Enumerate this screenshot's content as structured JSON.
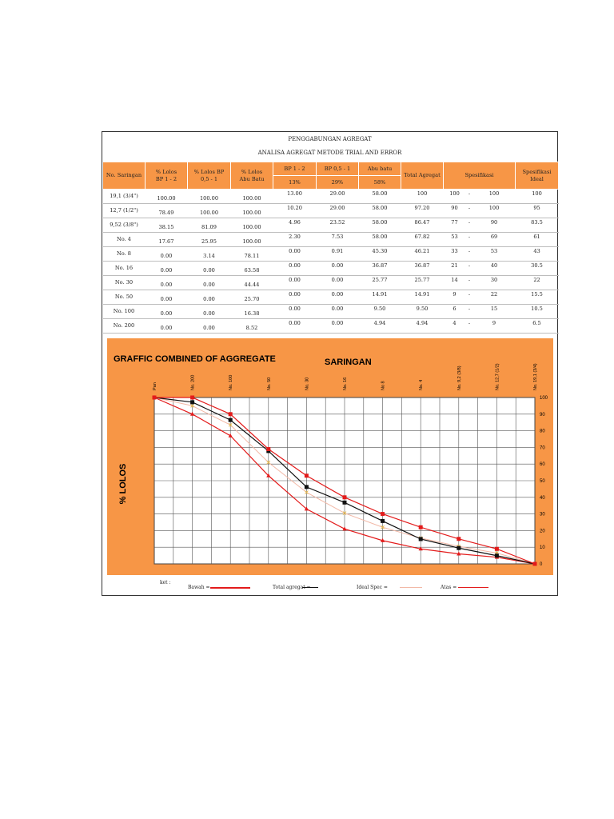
{
  "title": "PENGGABUNGAN AGREGAT",
  "subtitle": "ANALISA AGREGAT METODE TRIAL AND ERROR",
  "header": {
    "col_saringan": "No. Saringan",
    "col_lolos_bp12": [
      "% Lolos",
      "BP  1 - 2"
    ],
    "col_lolos_bp051": [
      "% Lolos     BP",
      "0,5 - 1"
    ],
    "col_lolos_abu": [
      "% Lolos",
      "Abu Batu"
    ],
    "col_bp12": "BP 1 - 2",
    "col_bp051": "BP 0,5 - 1",
    "col_abu": "Abu batu",
    "pct_bp12": "13%",
    "pct_bp051": "29%",
    "pct_abu": "58%",
    "col_total": "Total Agregat",
    "col_spec": "Spesifikasi",
    "col_ideal": [
      "Spesifikasi",
      "Ideal"
    ]
  },
  "rows": [
    [
      "19,1 (3/4\")",
      "100.00",
      "100.00",
      "100.00",
      "13.00",
      "29.00",
      "58.00",
      "100",
      "100",
      "-",
      "100",
      "100"
    ],
    [
      "12,7 (1/2\")",
      "78.49",
      "100.00",
      "100.00",
      "10.20",
      "29.00",
      "58.00",
      "97.20",
      "90",
      "-",
      "100",
      "95"
    ],
    [
      "9,52 (3/8\")",
      "38.15",
      "81.09",
      "100.00",
      "4.96",
      "23.52",
      "58.00",
      "86.47",
      "77",
      "-",
      "90",
      "83.5"
    ],
    [
      "No. 4",
      "17.67",
      "25.95",
      "100.00",
      "2.30",
      "7.53",
      "58.00",
      "67.82",
      "53",
      "-",
      "69",
      "61"
    ],
    [
      "No. 8",
      "0.00",
      "3.14",
      "78.11",
      "0.00",
      "0.91",
      "45.30",
      "46.21",
      "33",
      "-",
      "53",
      "43"
    ],
    [
      "No. 16",
      "0.00",
      "0.00",
      "63.58",
      "0.00",
      "0.00",
      "36.87",
      "36.87",
      "21",
      "-",
      "40",
      "30.5"
    ],
    [
      "No. 30",
      "0.00",
      "0.00",
      "44.44",
      "0.00",
      "0.00",
      "25.77",
      "25.77",
      "14",
      "-",
      "30",
      "22"
    ],
    [
      "No. 50",
      "0.00",
      "0.00",
      "25.70",
      "0.00",
      "0.00",
      "14.91",
      "14.91",
      "9",
      "-",
      "22",
      "15.5"
    ],
    [
      "No. 100",
      "0.00",
      "0.00",
      "16.38",
      "0.00",
      "0.00",
      "9.50",
      "9.50",
      "6",
      "-",
      "15",
      "10.5"
    ],
    [
      "No. 200",
      "0.00",
      "0.00",
      "8.52",
      "0.00",
      "0.00",
      "4.94",
      "4.94",
      "4",
      "-",
      "9",
      "6.5"
    ]
  ],
  "legend": {
    "ket": "ket :",
    "bawah": "Bawah =",
    "total": "Total agregat =",
    "ideal": "Ideal Spec =",
    "atas": "Atas ="
  },
  "chart_data": {
    "type": "line",
    "title": "GRAFFIC COMBINED OF AGGREGATE",
    "xlabel": "SARINGAN",
    "ylabel": "% LOLOS",
    "categories": [
      "Pan",
      "No. 200",
      "No. 100",
      "No. 50",
      "No. 30",
      "No. 16",
      "No 8",
      "No. 4",
      "No. 9,2 (3/8)",
      "No. 12,7 (1/2)",
      "No. 19,1 (3/4)"
    ],
    "ylim": [
      0,
      100
    ],
    "yticks": [
      100,
      90,
      80,
      70,
      60,
      50,
      40,
      30,
      20,
      10,
      0
    ],
    "grid": true,
    "x": [
      0,
      1,
      2,
      3,
      4,
      5,
      6,
      7,
      8,
      9,
      10
    ],
    "series": [
      {
        "name": "Atas",
        "color": "#e31b1b",
        "marker": "square",
        "values": [
          100,
          100,
          90,
          69,
          53,
          40,
          30,
          22,
          15,
          9,
          0
        ]
      },
      {
        "name": "Total agregat",
        "color": "#111111",
        "marker": "square",
        "values": [
          100,
          97.2,
          86.47,
          67.82,
          46.21,
          36.87,
          25.77,
          14.91,
          9.5,
          4.94,
          0
        ]
      },
      {
        "name": "Ideal Spec",
        "color": "#f2b8a6",
        "marker": "x",
        "values": [
          100,
          95,
          83.5,
          61,
          43,
          30.5,
          22,
          15.5,
          10.5,
          6.5,
          0
        ]
      },
      {
        "name": "Bawah",
        "color": "#e31b1b",
        "marker": "triangle",
        "values": [
          100,
          90,
          77,
          53,
          33,
          21,
          14,
          9,
          6,
          4,
          0
        ]
      }
    ]
  }
}
